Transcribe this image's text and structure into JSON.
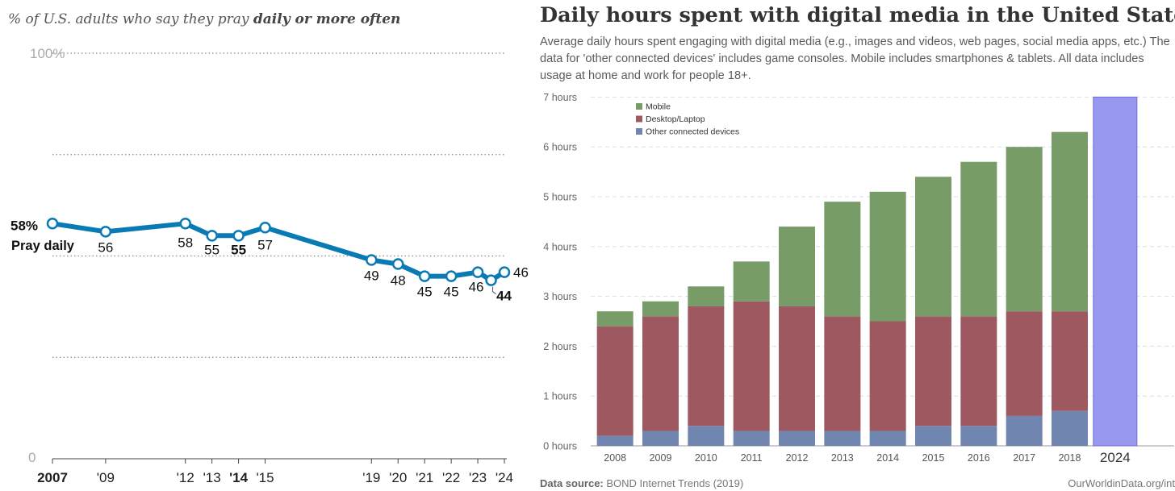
{
  "left_panel": {
    "subtitle_prefix": "% of U.S. adults who say they pray ",
    "subtitle_bold": "daily or more often",
    "colors": {
      "line": "#0a7ab5",
      "grid": "#888888",
      "text": "#333333"
    }
  },
  "right_panel": {
    "title": "Daily hours spent with digital media in the United States",
    "subtitle": "Average daily hours spent engaging with digital media (e.g., images and videos, web pages, social media apps, etc.) The data for 'other connected devices' includes game consoles. Mobile includes smartphones & tablets. All data includes usage at home and work for people 18+.",
    "source_label": "Data source:",
    "source_text": " BOND Internet Trends (2019)",
    "url": "OurWorldinData.org/int",
    "colors": {
      "Mobile": "#789c68",
      "Desktop/Laptop": "#9e5960",
      "Other connected devices": "#7085b0",
      "highlight": "#9898f0"
    }
  },
  "chart_data": [
    {
      "type": "line",
      "title": "% of U.S. adults who say they pray daily or more often",
      "ylim": [
        0,
        100
      ],
      "y_ticks": [
        "0",
        "100%"
      ],
      "x": [
        2007,
        2009,
        2012,
        2013,
        2014,
        2015,
        2019,
        2020,
        2021,
        2022,
        2023,
        2023.5,
        2024
      ],
      "x_tick_labels": [
        "2007",
        "'09",
        "'12",
        "'13",
        "'14",
        "'15",
        "'19",
        "'20",
        "'21",
        "'22",
        "'23",
        "'24"
      ],
      "x_tick_values": [
        2007,
        2009,
        2012,
        2013,
        2014,
        2015,
        2019,
        2020,
        2021,
        2022,
        2023,
        2024
      ],
      "bold_ticks": [
        "2007",
        "'14"
      ],
      "values": [
        58,
        56,
        58,
        55,
        55,
        57,
        49,
        48,
        45,
        45,
        46,
        44,
        46
      ],
      "point_labels": [
        "58%",
        "56",
        "58",
        "55",
        "55",
        "57",
        "49",
        "48",
        "45",
        "45",
        "46",
        "44",
        "46"
      ],
      "bold_labels": [
        "58%",
        "55",
        "44"
      ],
      "annotation": "Pray daily",
      "grid": "dotted"
    },
    {
      "type": "bar",
      "stacked": true,
      "categories": [
        "2008",
        "2009",
        "2010",
        "2011",
        "2012",
        "2013",
        "2014",
        "2015",
        "2016",
        "2017",
        "2018",
        "2024"
      ],
      "series": [
        {
          "name": "Other connected devices",
          "values": [
            0.2,
            0.3,
            0.4,
            0.3,
            0.3,
            0.3,
            0.3,
            0.4,
            0.4,
            0.6,
            0.7,
            null
          ]
        },
        {
          "name": "Desktop/Laptop",
          "values": [
            2.2,
            2.3,
            2.4,
            2.6,
            2.5,
            2.3,
            2.2,
            2.2,
            2.2,
            2.1,
            2.0,
            null
          ]
        },
        {
          "name": "Mobile",
          "values": [
            0.3,
            0.3,
            0.4,
            0.8,
            1.6,
            2.3,
            2.6,
            2.8,
            3.1,
            3.3,
            3.6,
            null
          ]
        }
      ],
      "highlight_bar": {
        "category": "2024",
        "value": 7
      },
      "ylim": [
        0,
        7
      ],
      "y_ticks": [
        0,
        1,
        2,
        3,
        4,
        5,
        6,
        7
      ],
      "y_tick_suffix": " hours",
      "legend_order": [
        "Mobile",
        "Desktop/Laptop",
        "Other connected devices"
      ],
      "legend_position": "top-left",
      "grid": "dashed"
    }
  ]
}
